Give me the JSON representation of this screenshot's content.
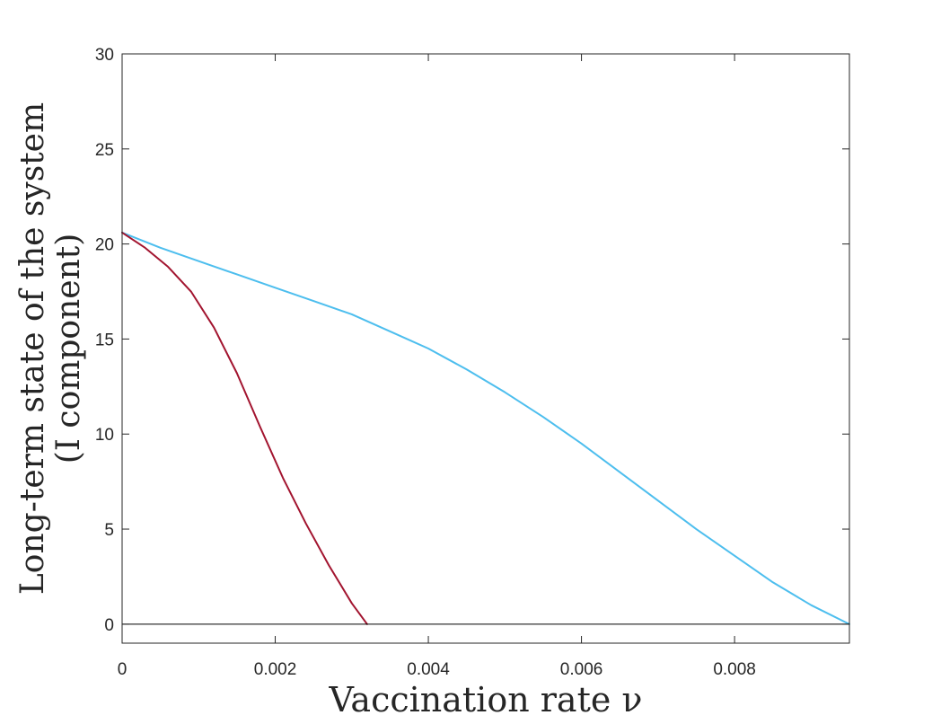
{
  "chart_data": {
    "type": "line",
    "title": "",
    "xlabel": "Vaccination rate ν",
    "ylabel_line1": "Long-term state of the system",
    "ylabel_line2": "(I component)",
    "xlim": [
      0,
      0.0095
    ],
    "ylim": [
      -1,
      30
    ],
    "x_ticks": [
      0,
      0.002,
      0.004,
      0.006,
      0.008
    ],
    "x_tick_labels": [
      "0",
      "0.002",
      "0.004",
      "0.006",
      "0.008"
    ],
    "y_ticks": [
      0,
      5,
      10,
      15,
      20,
      25,
      30
    ],
    "y_tick_labels": [
      "0",
      "5",
      "10",
      "15",
      "20",
      "25",
      "30"
    ],
    "grid": false,
    "series": [
      {
        "name": "cyan curve",
        "color": "#4dbeee",
        "x": [
          0,
          0.0005,
          0.001,
          0.0015,
          0.002,
          0.0025,
          0.003,
          0.0035,
          0.004,
          0.0045,
          0.005,
          0.0055,
          0.006,
          0.0065,
          0.007,
          0.0075,
          0.008,
          0.0085,
          0.009,
          0.0095
        ],
        "y": [
          20.6,
          19.8,
          19.1,
          18.4,
          17.7,
          17.0,
          16.3,
          15.4,
          14.5,
          13.4,
          12.2,
          10.9,
          9.5,
          8.0,
          6.5,
          5.0,
          3.6,
          2.2,
          1.0,
          0.0
        ]
      },
      {
        "name": "red curve",
        "color": "#a2142f",
        "x": [
          0,
          0.0003,
          0.0006,
          0.0009,
          0.0012,
          0.0015,
          0.0018,
          0.0021,
          0.0024,
          0.0027,
          0.003,
          0.0032
        ],
        "y": [
          20.6,
          19.8,
          18.8,
          17.5,
          15.6,
          13.2,
          10.4,
          7.7,
          5.3,
          3.1,
          1.1,
          0.0
        ]
      },
      {
        "name": "zero line",
        "color": "#000000",
        "x": [
          0,
          0.0095
        ],
        "y": [
          0,
          0
        ]
      }
    ]
  }
}
